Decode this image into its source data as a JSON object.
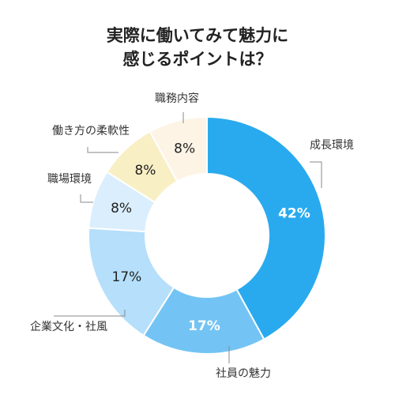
{
  "chart_data": {
    "type": "pie",
    "title_line1": "実際に働いてみて魅力に",
    "title_line2": "感じるポイントは？",
    "slices": [
      {
        "name": "成長環境",
        "value": 42,
        "label": "42%",
        "color": "#29aaef",
        "text_color": "#ffffff"
      },
      {
        "name": "社員の魅力",
        "value": 17,
        "label": "17%",
        "color": "#73c4f4",
        "text_color": "#ffffff"
      },
      {
        "name": "企業文化・社風",
        "value": 17,
        "label": "17%",
        "color": "#b5dffb",
        "text_color": "#222222"
      },
      {
        "name": "職場環境",
        "value": 8,
        "label": "8%",
        "color": "#dbeefd",
        "text_color": "#222222"
      },
      {
        "name": "働き方の柔軟性",
        "value": 8,
        "label": "8%",
        "color": "#f9efc4",
        "text_color": "#222222"
      },
      {
        "name": "職務内容",
        "value": 8,
        "label": "8%",
        "color": "#fdf4e6",
        "text_color": "#222222"
      }
    ]
  }
}
